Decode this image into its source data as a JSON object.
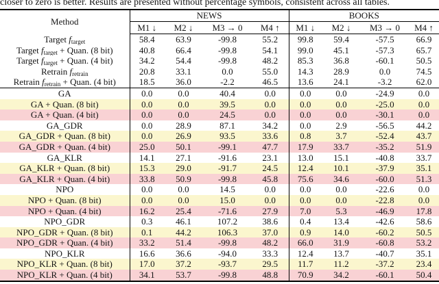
{
  "caption": "closer to zero is better. Results are presented without percentage symbols, consistent across all tables.",
  "table": {
    "method_header": "Method",
    "group_headers": [
      "NEWS",
      "BOOKS"
    ],
    "metric_headers": [
      "M1 ↓",
      "M2 ↓",
      "M3 → 0",
      "M4 ↑"
    ],
    "highlight_colors": {
      "none": "transparent",
      "yellow": "#FBF6CE",
      "pink": "#F9D2D4"
    },
    "rows": [
      {
        "method_pre": "Target ",
        "method_f": "f",
        "method_sub": "target",
        "method_post": "",
        "news": [
          "58.4",
          "63.9",
          "-99.8",
          "55.2"
        ],
        "books": [
          "99.8",
          "59.4",
          "-57.5",
          "66.9"
        ],
        "bg": "none",
        "rule_below": false
      },
      {
        "method_pre": "Target ",
        "method_f": "f",
        "method_sub": "target",
        "method_post": " + Quan. (8 bit)",
        "news": [
          "40.8",
          "66.4",
          "-99.8",
          "54.1"
        ],
        "books": [
          "99.0",
          "45.1",
          "-57.3",
          "65.7"
        ],
        "bg": "none",
        "rule_below": false
      },
      {
        "method_pre": "Target ",
        "method_f": "f",
        "method_sub": "target",
        "method_post": " + Quan. (4 bit)",
        "news": [
          "34.2",
          "54.4",
          "-99.8",
          "48.2"
        ],
        "books": [
          "85.3",
          "36.8",
          "-60.1",
          "50.5"
        ],
        "bg": "none",
        "rule_below": false
      },
      {
        "method_pre": "Retrain ",
        "method_f": "f",
        "method_sub": "retrain",
        "method_post": "",
        "news": [
          "20.8",
          "33.1",
          "0.0",
          "55.0"
        ],
        "books": [
          "14.3",
          "28.9",
          "0.0",
          "74.5"
        ],
        "bg": "none",
        "rule_below": false
      },
      {
        "method_pre": "Retrain ",
        "method_f": "f",
        "method_sub": "retrain",
        "method_post": " + Quan. (4 bit)",
        "news": [
          "18.5",
          "36.0",
          "-2.2",
          "46.5"
        ],
        "books": [
          "13.6",
          "24.1",
          "-3.2",
          "62.0"
        ],
        "bg": "none",
        "rule_below": true
      },
      {
        "method_pre": "GA",
        "method_f": "",
        "method_sub": "",
        "method_post": "",
        "news": [
          "0.0",
          "0.0",
          "40.4",
          "0.0"
        ],
        "books": [
          "0.0",
          "0.0",
          "-24.9",
          "0.0"
        ],
        "bg": "none",
        "rule_below": false
      },
      {
        "method_pre": "GA + Quan. (8 bit)",
        "method_f": "",
        "method_sub": "",
        "method_post": "",
        "news": [
          "0.0",
          "0.0",
          "39.5",
          "0.0"
        ],
        "books": [
          "0.0",
          "0.0",
          "-25.0",
          "0.0"
        ],
        "bg": "yellow",
        "rule_below": false
      },
      {
        "method_pre": "GA + Quan. (4 bit)",
        "method_f": "",
        "method_sub": "",
        "method_post": "",
        "news": [
          "0.0",
          "0.0",
          "24.5",
          "0.0"
        ],
        "books": [
          "0.0",
          "0.0",
          "-30.1",
          "0.0"
        ],
        "bg": "pink",
        "rule_below": false
      },
      {
        "method_pre": "GA_GDR",
        "method_f": "",
        "method_sub": "",
        "method_post": "",
        "news": [
          "0.0",
          "28.9",
          "87.1",
          "34.2"
        ],
        "books": [
          "0.0",
          "2.9",
          "-56.5",
          "44.2"
        ],
        "bg": "none",
        "rule_below": false
      },
      {
        "method_pre": "GA_GDR + Quan. (8 bit)",
        "method_f": "",
        "method_sub": "",
        "method_post": "",
        "news": [
          "0.0",
          "26.9",
          "93.5",
          "33.6"
        ],
        "books": [
          "0.8",
          "3.7",
          "-52.4",
          "43.7"
        ],
        "bg": "yellow",
        "rule_below": false
      },
      {
        "method_pre": "GA_GDR + Quan. (4 bit)",
        "method_f": "",
        "method_sub": "",
        "method_post": "",
        "news": [
          "25.0",
          "50.1",
          "-99.1",
          "47.7"
        ],
        "books": [
          "17.9",
          "33.7",
          "-35.2",
          "51.9"
        ],
        "bg": "pink",
        "rule_below": false
      },
      {
        "method_pre": "GA_KLR",
        "method_f": "",
        "method_sub": "",
        "method_post": "",
        "news": [
          "14.1",
          "27.1",
          "-91.6",
          "23.1"
        ],
        "books": [
          "13.0",
          "15.1",
          "-40.8",
          "33.7"
        ],
        "bg": "none",
        "rule_below": false
      },
      {
        "method_pre": "GA_KLR + Quan. (8 bit)",
        "method_f": "",
        "method_sub": "",
        "method_post": "",
        "news": [
          "15.3",
          "29.0",
          "-91.7",
          "24.5"
        ],
        "books": [
          "12.4",
          "10.1",
          "-37.9",
          "35.1"
        ],
        "bg": "yellow",
        "rule_below": false
      },
      {
        "method_pre": "GA_KLR + Quan. (4 bit)",
        "method_f": "",
        "method_sub": "",
        "method_post": "",
        "news": [
          "33.8",
          "50.9",
          "-99.8",
          "45.8"
        ],
        "books": [
          "75.6",
          "34.6",
          "-60.0",
          "51.3"
        ],
        "bg": "pink",
        "rule_below": false
      },
      {
        "method_pre": "NPO",
        "method_f": "",
        "method_sub": "",
        "method_post": "",
        "news": [
          "0.0",
          "0.0",
          "14.5",
          "0.0"
        ],
        "books": [
          "0.0",
          "0.0",
          "-22.6",
          "0.0"
        ],
        "bg": "none",
        "rule_below": false
      },
      {
        "method_pre": "NPO + Quan. (8 bit)",
        "method_f": "",
        "method_sub": "",
        "method_post": "",
        "news": [
          "0.0",
          "0.0",
          "15.0",
          "0.0"
        ],
        "books": [
          "0.0",
          "0.0",
          "-22.8",
          "0.0"
        ],
        "bg": "yellow",
        "rule_below": false
      },
      {
        "method_pre": "NPO + Quan. (4 bit)",
        "method_f": "",
        "method_sub": "",
        "method_post": "",
        "news": [
          "16.2",
          "25.4",
          "-71.6",
          "27.9"
        ],
        "books": [
          "7.0",
          "5.3",
          "-46.9",
          "17.8"
        ],
        "bg": "pink",
        "rule_below": false
      },
      {
        "method_pre": "NPO_GDR",
        "method_f": "",
        "method_sub": "",
        "method_post": "",
        "news": [
          "0.3",
          "46.1",
          "107.2",
          "38.6"
        ],
        "books": [
          "0.4",
          "13.4",
          "-42.6",
          "58.6"
        ],
        "bg": "none",
        "rule_below": false
      },
      {
        "method_pre": "NPO_GDR + Quan. (8 bit)",
        "method_f": "",
        "method_sub": "",
        "method_post": "",
        "news": [
          "0.1",
          "44.2",
          "106.3",
          "37.0"
        ],
        "books": [
          "0.9",
          "14.0",
          "-60.2",
          "50.5"
        ],
        "bg": "yellow",
        "rule_below": false
      },
      {
        "method_pre": "NPO_GDR + Quan. (4 bit)",
        "method_f": "",
        "method_sub": "",
        "method_post": "",
        "news": [
          "33.2",
          "51.4",
          "-99.8",
          "48.2"
        ],
        "books": [
          "66.0",
          "31.9",
          "-60.8",
          "53.2"
        ],
        "bg": "pink",
        "rule_below": false
      },
      {
        "method_pre": "NPO_KLR",
        "method_f": "",
        "method_sub": "",
        "method_post": "",
        "news": [
          "16.6",
          "36.6",
          "-94.0",
          "33.3"
        ],
        "books": [
          "12.4",
          "13.7",
          "-40.7",
          "35.1"
        ],
        "bg": "none",
        "rule_below": false
      },
      {
        "method_pre": "NPO_KLR + Quan. (8 bit)",
        "method_f": "",
        "method_sub": "",
        "method_post": "",
        "news": [
          "17.0",
          "37.2",
          "-93.7",
          "29.5"
        ],
        "books": [
          "11.7",
          "11.2",
          "-37.2",
          "23.4"
        ],
        "bg": "yellow",
        "rule_below": false
      },
      {
        "method_pre": "NPO_KLR + Quan. (4 bit)",
        "method_f": "",
        "method_sub": "",
        "method_post": "",
        "news": [
          "34.1",
          "53.7",
          "-99.8",
          "48.8"
        ],
        "books": [
          "70.9",
          "34.2",
          "-60.1",
          "50.4"
        ],
        "bg": "pink",
        "rule_below": false
      }
    ]
  }
}
